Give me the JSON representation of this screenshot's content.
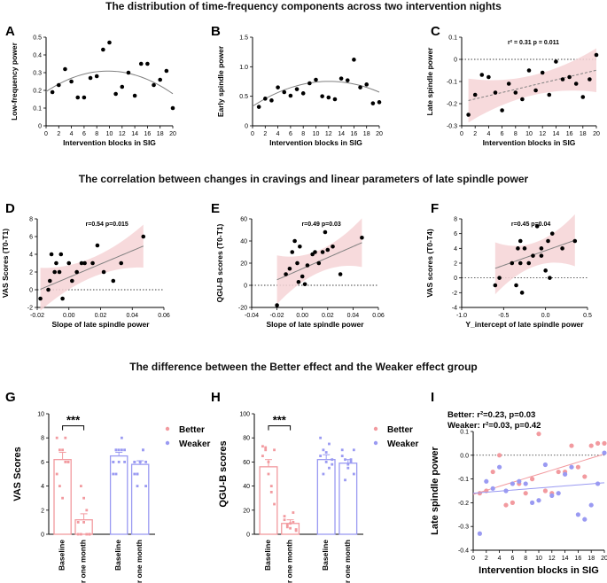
{
  "titles": {
    "row1": "The distribution of time-frequency components across two intervention nights",
    "row2": "The correlation between changes in cravings and linear parameters of late spindle power",
    "row3": "The difference between the Better effect and the Weaker effect group"
  },
  "colors": {
    "better": "#f29a9f",
    "weaker": "#9a9af2",
    "ci": "#f6d3d6",
    "fit": "#808080",
    "dot": "#000000"
  },
  "chart_data": [
    {
      "id": "A",
      "panel_label": "A",
      "type": "scatter",
      "xlabel": "Intervention blocks in SIG",
      "ylabel": "Low-frequency power",
      "xlim": [
        0,
        20
      ],
      "ylim": [
        0,
        0.5
      ],
      "xticks": [
        0,
        2,
        4,
        6,
        8,
        10,
        12,
        14,
        16,
        18,
        20
      ],
      "yticks": [
        0,
        0.1,
        0.2,
        0.3,
        0.4,
        0.5
      ],
      "ytick_labels": [
        "0",
        "0.1",
        "0.2",
        "0.3",
        "0.4",
        "0.5"
      ],
      "x": [
        1,
        2,
        3,
        4,
        5,
        6,
        7,
        8,
        9,
        10,
        11,
        12,
        13,
        14,
        15,
        16,
        17,
        18,
        19,
        20
      ],
      "y": [
        0.19,
        0.23,
        0.32,
        0.25,
        0.16,
        0.16,
        0.27,
        0.28,
        0.43,
        0.47,
        0.18,
        0.22,
        0.3,
        0.17,
        0.35,
        0.35,
        0.23,
        0.26,
        0.31,
        0.1
      ],
      "fit": {
        "kind": "quadratic",
        "coef": [
          0.193,
          0.0238,
          -0.00122
        ]
      }
    },
    {
      "id": "B",
      "panel_label": "B",
      "type": "scatter",
      "xlabel": "Intervention blocks in SIG",
      "ylabel": "Early spindle power",
      "xlim": [
        0,
        20
      ],
      "ylim": [
        0,
        1.5
      ],
      "xticks": [
        0,
        2,
        4,
        6,
        8,
        10,
        12,
        14,
        16,
        18,
        20
      ],
      "yticks": [
        0,
        0.5,
        1.0,
        1.5
      ],
      "ytick_labels": [
        "0",
        "0.5",
        "1.0",
        "1.5"
      ],
      "x": [
        1,
        2,
        3,
        4,
        5,
        6,
        7,
        8,
        9,
        10,
        11,
        12,
        13,
        14,
        15,
        16,
        17,
        18,
        19,
        20
      ],
      "y": [
        0.32,
        0.46,
        0.43,
        0.65,
        0.57,
        0.51,
        0.62,
        0.55,
        0.72,
        0.78,
        0.5,
        0.48,
        0.45,
        0.8,
        0.77,
        1.12,
        0.65,
        0.7,
        0.38,
        0.4
      ],
      "fit": {
        "kind": "quadratic",
        "coef": [
          0.33,
          0.07,
          -0.0029
        ]
      }
    },
    {
      "id": "C",
      "panel_label": "C",
      "type": "scatter",
      "xlabel": "Intervention blocks in SIG",
      "ylabel": "Late spindle power",
      "xlim": [
        0,
        20
      ],
      "ylim": [
        -0.3,
        0.1
      ],
      "xticks": [
        0,
        2,
        4,
        6,
        8,
        10,
        12,
        14,
        16,
        18,
        20
      ],
      "yticks": [
        -0.3,
        -0.2,
        -0.1,
        0,
        0.1
      ],
      "ytick_labels": [
        "-0.3",
        "-0.2",
        "-0.1",
        "0",
        "0.1"
      ],
      "refline": 0,
      "x": [
        1,
        2,
        3,
        4,
        5,
        6,
        7,
        8,
        9,
        10,
        11,
        12,
        13,
        14,
        15,
        16,
        17,
        18,
        19,
        20
      ],
      "y": [
        -0.25,
        -0.16,
        -0.07,
        -0.08,
        -0.15,
        -0.23,
        -0.11,
        -0.15,
        -0.18,
        -0.05,
        -0.14,
        -0.06,
        -0.16,
        -0.01,
        -0.09,
        -0.08,
        -0.11,
        -0.17,
        -0.09,
        0.02
      ],
      "fit": {
        "kind": "linear",
        "coef": [
          -0.193,
          0.0072
        ],
        "ci": 0.045
      },
      "stat": "r² = 0.31   p = 0.011",
      "stat_pos": "top"
    },
    {
      "id": "D",
      "panel_label": "D",
      "type": "scatter",
      "xlabel": "Slope of late spindle power",
      "ylabel": "VAS Scores (T0-T1)",
      "xlim": [
        -0.02,
        0.06
      ],
      "ylim": [
        -2,
        8
      ],
      "xticks": [
        -0.02,
        0,
        0.02,
        0.04,
        0.06
      ],
      "xtick_labels": [
        "-0.02",
        "0.00",
        "0.02",
        "0.04",
        "0.06"
      ],
      "yticks": [
        -2,
        0,
        2,
        4,
        6,
        8
      ],
      "ytick_labels": [
        "-2",
        "0",
        "2",
        "4",
        "6",
        "8"
      ],
      "refline": 0,
      "x": [
        -0.018,
        -0.013,
        -0.012,
        -0.011,
        -0.009,
        -0.008,
        -0.006,
        -0.005,
        -0.004,
        0.0,
        0.002,
        0.005,
        0.008,
        0.01,
        0.015,
        0.018,
        0.022,
        0.028,
        0.033,
        0.047
      ],
      "y": [
        -1,
        0,
        1,
        4,
        2,
        3,
        2,
        4,
        -1,
        3,
        1,
        2,
        3,
        3,
        3,
        5,
        2,
        1,
        3,
        6
      ],
      "fit": {
        "kind": "linear",
        "coef": [
          1.4,
          75
        ],
        "ci": 1.1
      },
      "stat": "r=0.54  p=0.015"
    },
    {
      "id": "E",
      "panel_label": "E",
      "type": "scatter",
      "xlabel": "Slope of late spindle power",
      "ylabel": "QGU-B scores (T0-T1)",
      "xlim": [
        -0.04,
        0.06
      ],
      "ylim": [
        -20,
        60
      ],
      "xticks": [
        -0.04,
        -0.02,
        0,
        0.02,
        0.04,
        0.06
      ],
      "xtick_labels": [
        "-0.04",
        "-0.02",
        "0.00",
        "0.02",
        "0.04",
        "0.06"
      ],
      "yticks": [
        -20,
        0,
        20,
        40,
        60
      ],
      "ytick_labels": [
        "-20",
        "0",
        "20",
        "40",
        "60"
      ],
      "refline": 0,
      "x": [
        -0.02,
        -0.013,
        -0.01,
        -0.008,
        -0.006,
        -0.004,
        -0.003,
        -0.002,
        0.0,
        0.002,
        0.004,
        0.008,
        0.01,
        0.013,
        0.016,
        0.018,
        0.02,
        0.024,
        0.03,
        0.047
      ],
      "y": [
        -18,
        10,
        15,
        30,
        40,
        20,
        3,
        35,
        8,
        1,
        18,
        28,
        30,
        20,
        30,
        48,
        32,
        35,
        10,
        43
      ],
      "fit": {
        "kind": "linear",
        "coef": [
          15,
          500
        ],
        "ci": 10
      },
      "stat": "r=0.49  p=0.03"
    },
    {
      "id": "F",
      "panel_label": "F",
      "type": "scatter",
      "xlabel": "Y_intercept of late spindle power",
      "ylabel": "VAS scores (T0-T4)",
      "xlim": [
        -1.0,
        0.5
      ],
      "ylim": [
        -4,
        8
      ],
      "xticks": [
        -1.0,
        -0.5,
        0,
        0.5
      ],
      "xtick_labels": [
        "-1.0",
        "-0.5",
        "0.0",
        "0.5"
      ],
      "yticks": [
        -4,
        -2,
        0,
        2,
        4,
        6,
        8
      ],
      "ytick_labels": [
        "-4",
        "-2",
        "0",
        "2",
        "4",
        "6",
        "8"
      ],
      "refline": 0,
      "x": [
        -0.6,
        -0.55,
        -0.4,
        -0.35,
        -0.33,
        -0.3,
        -0.3,
        -0.28,
        -0.25,
        -0.2,
        -0.15,
        -0.1,
        -0.05,
        -0.05,
        0.0,
        0.03,
        0.05,
        0.08,
        0.2,
        0.35
      ],
      "y": [
        -1,
        0,
        2,
        -1,
        4,
        2,
        5,
        -2,
        4,
        2,
        3,
        7,
        3,
        4,
        1,
        5,
        0,
        6,
        4,
        5
      ],
      "fit": {
        "kind": "linear",
        "coef": [
          3.7,
          4.0
        ],
        "ci": 1.6
      },
      "stat": "r=0.45  p=0.04"
    },
    {
      "id": "G",
      "panel_label": "G",
      "type": "bar",
      "ylabel": "VAS Scores",
      "ylim": [
        0,
        10
      ],
      "yticks": [
        0,
        2,
        4,
        6,
        8,
        10
      ],
      "ytick_labels": [
        "0",
        "2",
        "4",
        "6",
        "8",
        "10"
      ],
      "categories": [
        "Baseline",
        "After one month",
        "Baseline",
        "After one month"
      ],
      "groups": [
        "better",
        "better",
        "weaker",
        "weaker"
      ],
      "values": [
        6.2,
        1.2,
        6.5,
        5.8
      ],
      "errors": [
        0.6,
        0.5,
        0.3,
        0.3
      ],
      "points": [
        [
          5,
          7,
          7,
          6,
          6,
          8,
          4,
          3,
          8,
          6
        ],
        [
          0,
          0,
          1,
          2,
          0,
          1,
          4,
          3,
          0,
          0
        ],
        [
          6,
          7,
          7,
          8,
          6,
          5,
          7,
          6,
          7,
          7,
          6,
          5
        ],
        [
          6,
          5,
          6,
          7,
          4,
          6,
          5,
          6,
          7,
          6,
          5,
          4
        ]
      ],
      "significance": "***",
      "legend": [
        "Better",
        "Weaker"
      ]
    },
    {
      "id": "H",
      "panel_label": "H",
      "type": "bar",
      "ylabel": "QGU-B scores",
      "ylim": [
        0,
        100
      ],
      "yticks": [
        0,
        20,
        40,
        60,
        80,
        100
      ],
      "ytick_labels": [
        "0",
        "20",
        "40",
        "60",
        "80",
        "100"
      ],
      "categories": [
        "Baseline",
        "After one month",
        "Baseline",
        "After one month"
      ],
      "groups": [
        "better",
        "better",
        "weaker",
        "weaker"
      ],
      "values": [
        56,
        9,
        62,
        59
      ],
      "errors": [
        6,
        3,
        4,
        3
      ],
      "points": [
        [
          73,
          70,
          60,
          40,
          25,
          65,
          72,
          50,
          35,
          70
        ],
        [
          15,
          8,
          5,
          10,
          3,
          12,
          6,
          9,
          18,
          4
        ],
        [
          80,
          70,
          60,
          55,
          62,
          65,
          50,
          68,
          75,
          58
        ],
        [
          70,
          62,
          55,
          60,
          50,
          65,
          45,
          58,
          62,
          70
        ]
      ],
      "significance": "***",
      "legend": [
        "Better",
        "Weaker"
      ]
    },
    {
      "id": "I",
      "panel_label": "I",
      "type": "scatter",
      "xlabel": "Intervention blocks in SIG",
      "ylabel": "Late spindle power",
      "xlim": [
        0,
        20
      ],
      "ylim": [
        -0.4,
        0.1
      ],
      "xticks": [
        0,
        2,
        4,
        6,
        8,
        10,
        12,
        14,
        16,
        18,
        20
      ],
      "yticks": [
        -0.4,
        -0.3,
        -0.2,
        -0.1,
        0,
        0.1
      ],
      "ytick_labels": [
        "-0.4",
        "-0.3",
        "-0.2",
        "-0.1",
        "0.0",
        "0.1"
      ],
      "refline": 0,
      "series": [
        {
          "name": "Better",
          "group": "better",
          "x": [
            1,
            2,
            3,
            4,
            5,
            6,
            7,
            8,
            9,
            10,
            11,
            12,
            13,
            14,
            15,
            16,
            17,
            18,
            19,
            20
          ],
          "y": [
            -0.16,
            -0.15,
            -0.07,
            0.0,
            -0.21,
            -0.2,
            -0.12,
            -0.16,
            -0.1,
            0.09,
            -0.15,
            -0.16,
            -0.07,
            -0.07,
            0.04,
            -0.05,
            -0.09,
            0.04,
            0.05,
            0.05
          ],
          "fit": {
            "kind": "linear",
            "coef": [
              -0.165,
              0.0085
            ]
          }
        },
        {
          "name": "Weaker",
          "group": "weaker",
          "x": [
            1,
            2,
            3,
            4,
            5,
            6,
            7,
            8,
            9,
            10,
            11,
            12,
            13,
            14,
            15,
            16,
            17,
            18,
            19,
            20
          ],
          "y": [
            -0.33,
            -0.11,
            -0.14,
            -0.05,
            -0.15,
            -0.12,
            -0.11,
            -0.12,
            -0.2,
            -0.19,
            -0.04,
            -0.17,
            -0.16,
            -0.08,
            -0.05,
            -0.25,
            -0.27,
            -0.21,
            -0.12,
            0.01
          ],
          "fit": {
            "kind": "linear",
            "coef": [
              -0.16,
              0.0022
            ]
          }
        }
      ],
      "stat_lines": [
        "Better: r²=0.23, p=0.03",
        "Weaker: r²=0.03, p=0.42"
      ]
    }
  ]
}
